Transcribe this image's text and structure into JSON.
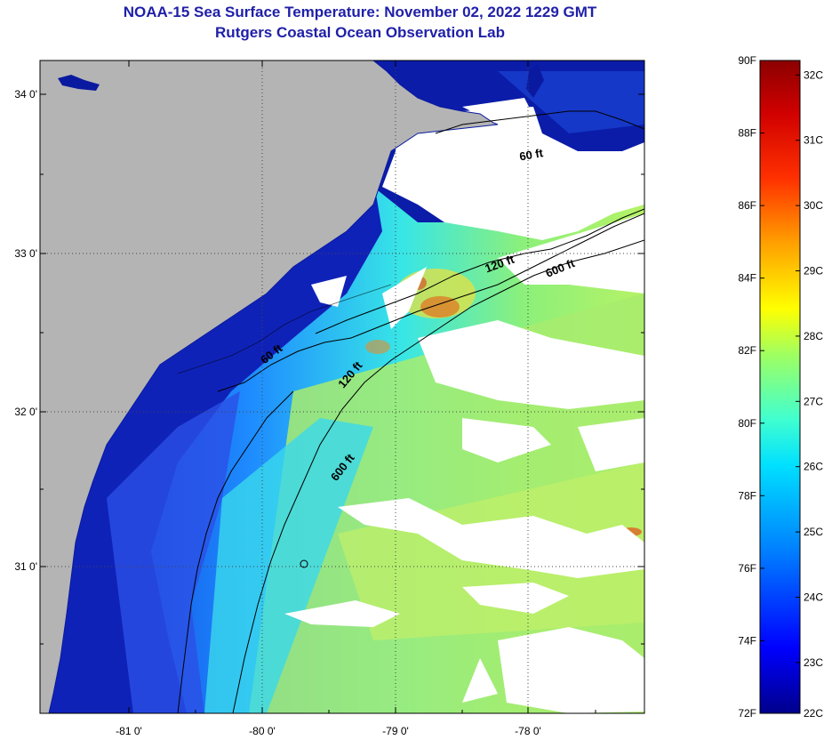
{
  "title": "NOAA-15 Sea Surface Temperature:  November 02, 2022 1229 GMT",
  "subtitle": "Rutgers Coastal Ocean Observation Lab",
  "map": {
    "lat_ticks": [
      "34 0'",
      "33 0'",
      "32 0'",
      "31 0'"
    ],
    "lon_ticks": [
      "-81 0'",
      "-80 0'",
      "-79 0'",
      "-78 0'"
    ],
    "contour_labels": [
      "60 ft",
      "120 ft",
      "600 ft",
      "60 ft",
      "120 ft",
      "600 ft"
    ]
  },
  "colorbar": {
    "fahrenheit_labels": [
      "90F",
      "88F",
      "86F",
      "84F",
      "82F",
      "80F",
      "78F",
      "76F",
      "74F",
      "72F"
    ],
    "celsius_labels": [
      "32C",
      "31C",
      "30C",
      "29C",
      "28C",
      "27C",
      "26C",
      "25C",
      "24C",
      "23C",
      "22C"
    ],
    "stops": [
      "#00008b",
      "#0000ff",
      "#0066ff",
      "#00ccff",
      "#00ffcc",
      "#66ff66",
      "#ccff33",
      "#ffff00",
      "#ffcc00",
      "#ff6600",
      "#ff0000",
      "#8b0000"
    ]
  },
  "colors": {
    "land": "#b4b4b4",
    "cloud": "#ffffff",
    "coastal_dark": "#0a1aa0",
    "title": "#1f1fa8"
  }
}
